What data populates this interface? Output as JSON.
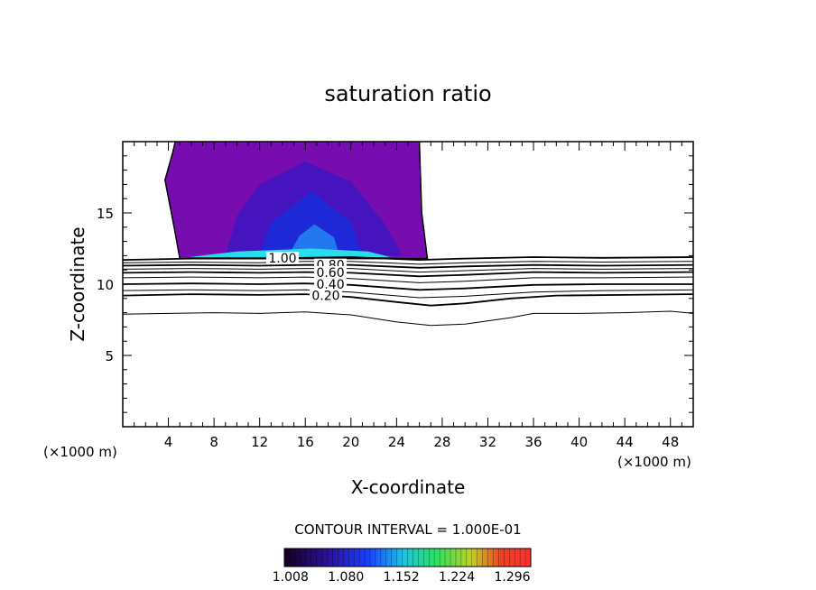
{
  "chart_data": {
    "type": "contour",
    "title": "saturation ratio",
    "xlabel": "X-coordinate",
    "ylabel": "Z-coordinate",
    "x_unit": "(×1000 m)",
    "y_unit": "(×1000 m)",
    "xlim": [
      0,
      50
    ],
    "ylim": [
      0,
      20
    ],
    "x_ticks": [
      4,
      8,
      12,
      16,
      20,
      24,
      28,
      32,
      36,
      40,
      44,
      48
    ],
    "y_ticks": [
      5,
      10,
      15
    ],
    "contour_interval_text": "CONTOUR INTERVAL = 1.000E-01",
    "colorbar_labels": [
      "1.008",
      "1.080",
      "1.152",
      "1.224",
      "1.296"
    ],
    "colorbar_range": [
      1.0,
      1.32
    ],
    "contour_lines": [
      {
        "level": 1.0,
        "label": "1.00",
        "points": [
          [
            0,
            11.7
          ],
          [
            6,
            11.8
          ],
          [
            12,
            11.8
          ],
          [
            16,
            11.85
          ],
          [
            20,
            11.9
          ],
          [
            26,
            11.7
          ],
          [
            30,
            11.8
          ],
          [
            36,
            11.9
          ],
          [
            42,
            11.85
          ],
          [
            50,
            11.9
          ]
        ]
      },
      {
        "level": 0.9,
        "label": "",
        "points": [
          [
            0,
            11.5
          ],
          [
            6,
            11.55
          ],
          [
            12,
            11.5
          ],
          [
            16,
            11.6
          ],
          [
            20,
            11.6
          ],
          [
            26,
            11.4
          ],
          [
            30,
            11.5
          ],
          [
            36,
            11.6
          ],
          [
            42,
            11.55
          ],
          [
            50,
            11.6
          ]
        ]
      },
      {
        "level": 0.8,
        "label": "0.80",
        "points": [
          [
            0,
            11.3
          ],
          [
            6,
            11.35
          ],
          [
            12,
            11.3
          ],
          [
            16,
            11.35
          ],
          [
            20,
            11.35
          ],
          [
            26,
            11.15
          ],
          [
            30,
            11.25
          ],
          [
            36,
            11.35
          ],
          [
            42,
            11.3
          ],
          [
            50,
            11.35
          ]
        ]
      },
      {
        "level": 0.7,
        "label": "",
        "points": [
          [
            0,
            11.05
          ],
          [
            6,
            11.1
          ],
          [
            12,
            11.05
          ],
          [
            16,
            11.1
          ],
          [
            20,
            11.1
          ],
          [
            26,
            10.85
          ],
          [
            30,
            10.95
          ],
          [
            36,
            11.1
          ],
          [
            42,
            11.05
          ],
          [
            50,
            11.1
          ]
        ]
      },
      {
        "level": 0.6,
        "label": "0.60",
        "points": [
          [
            0,
            10.8
          ],
          [
            6,
            10.85
          ],
          [
            12,
            10.8
          ],
          [
            16,
            10.85
          ],
          [
            20,
            10.8
          ],
          [
            26,
            10.55
          ],
          [
            30,
            10.65
          ],
          [
            36,
            10.85
          ],
          [
            42,
            10.8
          ],
          [
            50,
            10.85
          ]
        ]
      },
      {
        "level": 0.5,
        "label": "",
        "points": [
          [
            0,
            10.45
          ],
          [
            6,
            10.5
          ],
          [
            12,
            10.45
          ],
          [
            16,
            10.5
          ],
          [
            20,
            10.4
          ],
          [
            26,
            10.1
          ],
          [
            30,
            10.2
          ],
          [
            36,
            10.45
          ],
          [
            42,
            10.45
          ],
          [
            50,
            10.5
          ]
        ]
      },
      {
        "level": 0.4,
        "label": "0.40",
        "points": [
          [
            0,
            10.0
          ],
          [
            6,
            10.05
          ],
          [
            12,
            10.0
          ],
          [
            16,
            10.05
          ],
          [
            20,
            9.95
          ],
          [
            26,
            9.6
          ],
          [
            30,
            9.7
          ],
          [
            36,
            9.95
          ],
          [
            42,
            10.0
          ],
          [
            50,
            10.0
          ]
        ]
      },
      {
        "level": 0.3,
        "label": "",
        "points": [
          [
            0,
            9.55
          ],
          [
            6,
            9.6
          ],
          [
            12,
            9.55
          ],
          [
            16,
            9.6
          ],
          [
            20,
            9.45
          ],
          [
            26,
            9.05
          ],
          [
            30,
            9.15
          ],
          [
            36,
            9.45
          ],
          [
            42,
            9.55
          ],
          [
            50,
            9.6
          ]
        ]
      },
      {
        "level": 0.2,
        "label": "0.20",
        "points": [
          [
            0,
            9.2
          ],
          [
            6,
            9.3
          ],
          [
            12,
            9.25
          ],
          [
            16,
            9.3
          ],
          [
            20,
            9.1
          ],
          [
            24,
            8.75
          ],
          [
            27,
            8.5
          ],
          [
            30,
            8.65
          ],
          [
            34,
            9.0
          ],
          [
            38,
            9.2
          ],
          [
            44,
            9.25
          ],
          [
            50,
            9.3
          ]
        ]
      },
      {
        "level": 0.1,
        "label": "",
        "points": [
          [
            0,
            7.9
          ],
          [
            4,
            7.95
          ],
          [
            8,
            8.0
          ],
          [
            12,
            7.95
          ],
          [
            16,
            8.05
          ],
          [
            20,
            7.85
          ],
          [
            24,
            7.35
          ],
          [
            27,
            7.1
          ],
          [
            30,
            7.2
          ],
          [
            34,
            7.65
          ],
          [
            36,
            7.95
          ],
          [
            40,
            7.95
          ],
          [
            44,
            8.0
          ],
          [
            48,
            8.1
          ],
          [
            50,
            7.95
          ]
        ]
      }
    ],
    "filled_region": {
      "outline": [
        [
          5.0,
          11.8
        ],
        [
          4.5,
          14.0
        ],
        [
          3.7,
          17.3
        ],
        [
          4.4,
          19.3
        ],
        [
          4.6,
          20.0
        ],
        [
          26.0,
          20.0
        ],
        [
          26.2,
          15.0
        ],
        [
          26.7,
          11.8
        ]
      ],
      "base_value": 1.008,
      "core": [
        {
          "value": 1.08,
          "points": [
            [
              9,
              12.0
            ],
            [
              10,
              14.8
            ],
            [
              12,
              17.0
            ],
            [
              16,
              18.6
            ],
            [
              20,
              17.2
            ],
            [
              23,
              14.2
            ],
            [
              24.5,
              12.0
            ]
          ]
        },
        {
          "value": 1.152,
          "points": [
            [
              12,
              12.0
            ],
            [
              13,
              14.3
            ],
            [
              16.5,
              16.5
            ],
            [
              20,
              14.4
            ],
            [
              21,
              12.0
            ]
          ]
        },
        {
          "value": 1.224,
          "points": [
            [
              14.5,
              12.0
            ],
            [
              15.5,
              13.4
            ],
            [
              16.8,
              14.2
            ],
            [
              18.5,
              13.3
            ],
            [
              19,
              12.0
            ]
          ]
        },
        {
          "value": 1.26,
          "points": [
            [
              5.8,
              11.9
            ],
            [
              10,
              12.3
            ],
            [
              16.5,
              12.5
            ],
            [
              21.5,
              12.3
            ],
            [
              23.5,
              11.9
            ]
          ]
        }
      ]
    }
  }
}
